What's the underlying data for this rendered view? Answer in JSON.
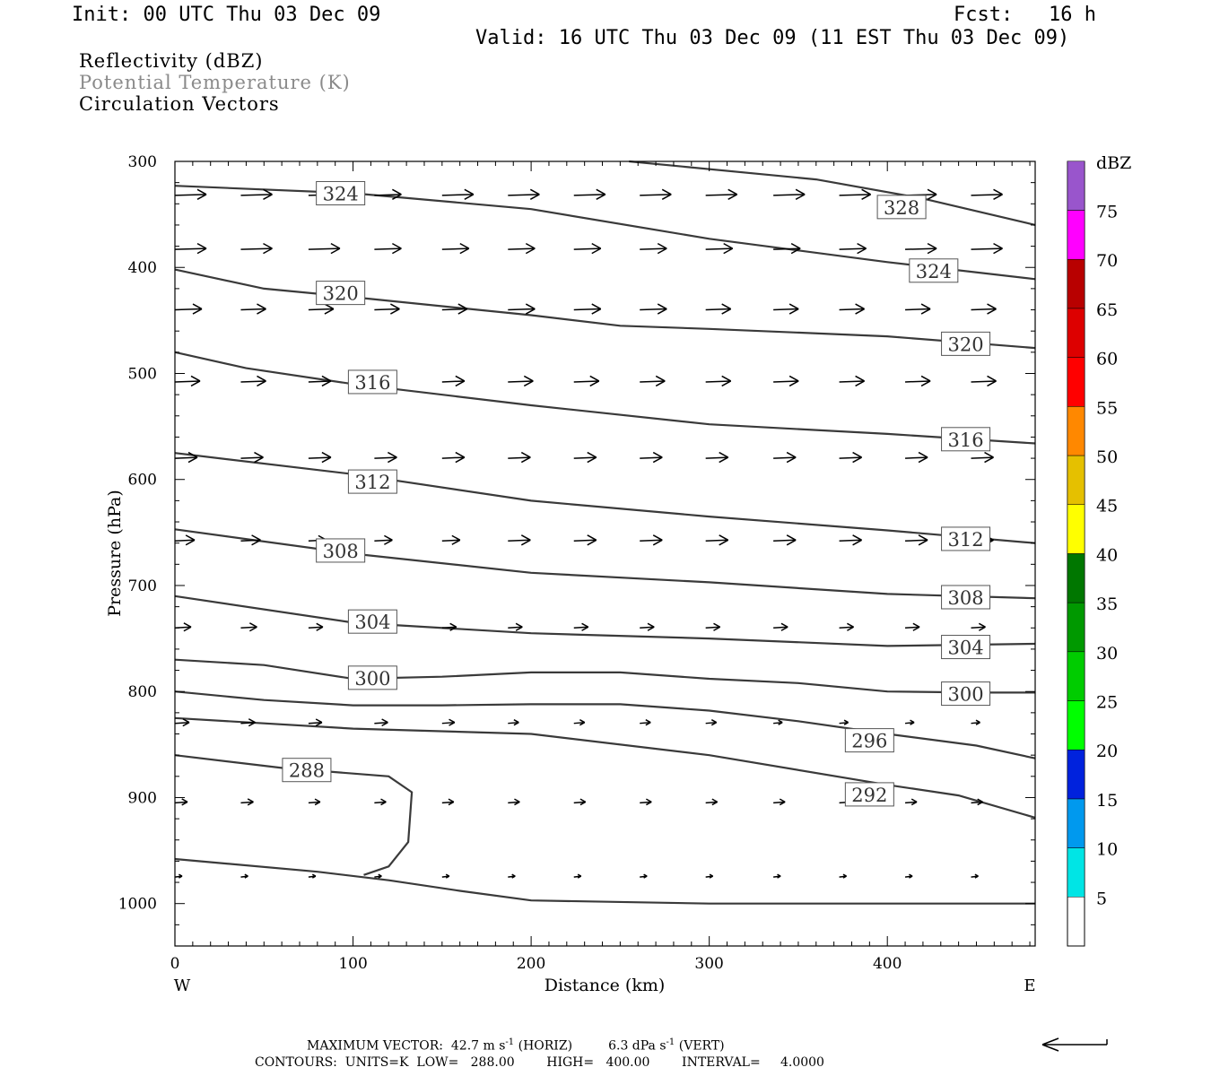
{
  "header": {
    "init": "Init: 00 UTC Thu 03 Dec 09",
    "fcst": "Fcst:   16 h",
    "valid": "Valid: 16 UTC Thu 03 Dec 09 (11 EST Thu 03 Dec 09)"
  },
  "legend": {
    "line1": "Reflectivity (dBZ)",
    "line2": "Potential Temperature (K)",
    "line3": "Circulation Vectors",
    "line2_color": "#8a8a8a"
  },
  "footer": {
    "max_vector_prefix": "MAXIMUM VECTOR:  42.7 m s",
    "max_vector_mid": " (HORIZ)         6.3 dPa s",
    "max_vector_suffix": " (VERT)",
    "exponent": "-1",
    "contours": "CONTOURS:  UNITS=K  LOW=   288.00        HIGH=   400.00        INTERVAL=     4.0000"
  },
  "chart_data": {
    "type": "line",
    "xlabel": "Distance (km)",
    "ylabel": "Pressure (hPa)",
    "xlim": [
      0,
      483
    ],
    "ylim": [
      300,
      1040
    ],
    "x_ticks": [
      0,
      100,
      200,
      300,
      400
    ],
    "y_ticks": [
      300,
      400,
      500,
      600,
      700,
      800,
      900,
      1000
    ],
    "x_end_labels": {
      "left": "W",
      "right": "E"
    },
    "contour_color": "#3a3a3a",
    "series": [
      {
        "name": "328",
        "points": [
          [
            255,
            300
          ],
          [
            360,
            317
          ],
          [
            420,
            335
          ],
          [
            483,
            360
          ]
        ],
        "labels": [
          [
            408,
            343
          ]
        ]
      },
      {
        "name": "324",
        "points": [
          [
            0,
            323
          ],
          [
            100,
            330
          ],
          [
            200,
            345
          ],
          [
            300,
            373
          ],
          [
            400,
            395
          ],
          [
            483,
            411
          ]
        ],
        "labels": [
          [
            93,
            330
          ],
          [
            426,
            403
          ]
        ]
      },
      {
        "name": "320",
        "points": [
          [
            0,
            402
          ],
          [
            50,
            420
          ],
          [
            100,
            428
          ],
          [
            200,
            445
          ],
          [
            250,
            455
          ],
          [
            300,
            458
          ],
          [
            400,
            465
          ],
          [
            483,
            476
          ]
        ],
        "labels": [
          [
            93,
            424
          ],
          [
            444,
            472
          ]
        ]
      },
      {
        "name": "316",
        "points": [
          [
            0,
            480
          ],
          [
            40,
            495
          ],
          [
            100,
            510
          ],
          [
            200,
            530
          ],
          [
            300,
            548
          ],
          [
            400,
            557
          ],
          [
            483,
            566
          ]
        ],
        "labels": [
          [
            111,
            508
          ],
          [
            444,
            562
          ]
        ]
      },
      {
        "name": "312",
        "points": [
          [
            0,
            575
          ],
          [
            100,
            595
          ],
          [
            200,
            620
          ],
          [
            300,
            635
          ],
          [
            400,
            648
          ],
          [
            483,
            660
          ]
        ],
        "labels": [
          [
            111,
            602
          ],
          [
            444,
            656
          ]
        ]
      },
      {
        "name": "308",
        "points": [
          [
            0,
            647
          ],
          [
            100,
            670
          ],
          [
            200,
            688
          ],
          [
            300,
            697
          ],
          [
            400,
            708
          ],
          [
            483,
            712
          ]
        ],
        "labels": [
          [
            93,
            667
          ],
          [
            444,
            711
          ]
        ]
      },
      {
        "name": "304",
        "points": [
          [
            0,
            710
          ],
          [
            100,
            735
          ],
          [
            200,
            745
          ],
          [
            300,
            750
          ],
          [
            400,
            757
          ],
          [
            483,
            755
          ]
        ],
        "labels": [
          [
            111,
            734
          ],
          [
            444,
            758
          ]
        ]
      },
      {
        "name": "300",
        "points": [
          [
            0,
            770
          ],
          [
            50,
            775
          ],
          [
            100,
            788
          ],
          [
            150,
            786
          ],
          [
            200,
            782
          ],
          [
            250,
            782
          ],
          [
            300,
            788
          ],
          [
            350,
            792
          ],
          [
            400,
            800
          ],
          [
            450,
            801
          ],
          [
            483,
            801
          ]
        ],
        "labels": [
          [
            111,
            787
          ],
          [
            444,
            802
          ]
        ]
      },
      {
        "name": "296",
        "points": [
          [
            0,
            800
          ],
          [
            50,
            808
          ],
          [
            100,
            813
          ],
          [
            150,
            813
          ],
          [
            200,
            812
          ],
          [
            250,
            812
          ],
          [
            300,
            818
          ],
          [
            350,
            828
          ],
          [
            400,
            840
          ],
          [
            450,
            851
          ],
          [
            483,
            863
          ]
        ],
        "labels": [
          [
            390,
            846
          ]
        ]
      },
      {
        "name": "292",
        "points": [
          [
            0,
            825
          ],
          [
            100,
            835
          ],
          [
            200,
            840
          ],
          [
            300,
            860
          ],
          [
            400,
            888
          ],
          [
            440,
            898
          ],
          [
            483,
            919
          ]
        ],
        "labels": [
          [
            390,
            897
          ]
        ]
      },
      {
        "name": "288",
        "points": [
          [
            0,
            860
          ],
          [
            60,
            872
          ],
          [
            120,
            880
          ],
          [
            133,
            895
          ],
          [
            131,
            942
          ],
          [
            120,
            965
          ],
          [
            106,
            973
          ]
        ],
        "labels": [
          [
            74,
            874
          ]
        ]
      },
      {
        "name": "",
        "points": [
          [
            0,
            958
          ],
          [
            80,
            970
          ],
          [
            120,
            978
          ],
          [
            160,
            988
          ],
          [
            200,
            997
          ],
          [
            300,
            1000
          ],
          [
            483,
            1000
          ]
        ],
        "labels": []
      }
    ],
    "vector_rows": [
      {
        "p": 332,
        "x": [
          0,
          37,
          75,
          112,
          150,
          187,
          224,
          261,
          298,
          336,
          373,
          410,
          447
        ],
        "len": [
          35,
          35,
          35,
          30,
          35,
          35,
          35,
          35,
          35,
          35,
          35,
          35,
          35
        ]
      },
      {
        "p": 383,
        "x": [
          0,
          37,
          75,
          112,
          150,
          187,
          224,
          261,
          298,
          336,
          373,
          410,
          447
        ],
        "len": [
          35,
          35,
          35,
          30,
          30,
          30,
          30,
          30,
          30,
          30,
          30,
          35,
          35
        ]
      },
      {
        "p": 440,
        "x": [
          0,
          37,
          75,
          112,
          150,
          187,
          224,
          261,
          298,
          336,
          373,
          410,
          447
        ],
        "len": [
          30,
          28,
          28,
          28,
          28,
          30,
          30,
          30,
          28,
          28,
          28,
          28,
          28
        ]
      },
      {
        "p": 508,
        "x": [
          0,
          37,
          75,
          112,
          150,
          187,
          224,
          261,
          298,
          336,
          373,
          410,
          447
        ],
        "len": [
          28,
          28,
          25,
          25,
          25,
          28,
          28,
          28,
          28,
          28,
          28,
          28,
          28
        ]
      },
      {
        "p": 580,
        "x": [
          0,
          37,
          75,
          112,
          150,
          187,
          224,
          261,
          298,
          336,
          373,
          410,
          447
        ],
        "len": [
          25,
          25,
          25,
          25,
          25,
          25,
          25,
          25,
          25,
          25,
          25,
          25,
          25
        ]
      },
      {
        "p": 658,
        "x": [
          0,
          37,
          75,
          112,
          150,
          187,
          224,
          261,
          298,
          336,
          373,
          410,
          447
        ],
        "len": [
          22,
          22,
          20,
          20,
          20,
          25,
          25,
          25,
          25,
          25,
          25,
          25,
          25
        ]
      },
      {
        "p": 740,
        "x": [
          0,
          37,
          75,
          112,
          150,
          187,
          224,
          261,
          298,
          336,
          373,
          410,
          447
        ],
        "len": [
          18,
          18,
          16,
          16,
          16,
          16,
          16,
          16,
          16,
          16,
          16,
          16,
          16
        ]
      },
      {
        "p": 830,
        "x": [
          0,
          37,
          75,
          112,
          150,
          187,
          224,
          261,
          298,
          336,
          373,
          410,
          447
        ],
        "len": [
          16,
          16,
          15,
          15,
          14,
          12,
          12,
          12,
          12,
          10,
          10,
          10,
          10
        ]
      },
      {
        "p": 905,
        "x": [
          0,
          37,
          75,
          112,
          150,
          187,
          224,
          261,
          298,
          336,
          373,
          410,
          447
        ],
        "len": [
          14,
          14,
          13,
          13,
          13,
          13,
          13,
          13,
          13,
          13,
          13,
          13,
          13
        ]
      },
      {
        "p": 975,
        "x": [
          0,
          37,
          75,
          112,
          150,
          187,
          224,
          261,
          298,
          336,
          373,
          410,
          447
        ],
        "len": [
          8,
          8,
          8,
          8,
          8,
          8,
          8,
          8,
          8,
          8,
          8,
          8,
          8
        ]
      }
    ],
    "colorbar": {
      "title": "dBZ",
      "labels": [
        "5",
        "10",
        "15",
        "20",
        "25",
        "30",
        "35",
        "40",
        "45",
        "50",
        "55",
        "60",
        "65",
        "70",
        "75"
      ],
      "colors": [
        "#00e5e5",
        "#0099ee",
        "#0022dd",
        "#00ff00",
        "#00cc00",
        "#009900",
        "#007700",
        "#ffff00",
        "#e5c000",
        "#ff8800",
        "#ff0000",
        "#dd0000",
        "#b80000",
        "#ff00ff",
        "#9955cc"
      ]
    }
  }
}
